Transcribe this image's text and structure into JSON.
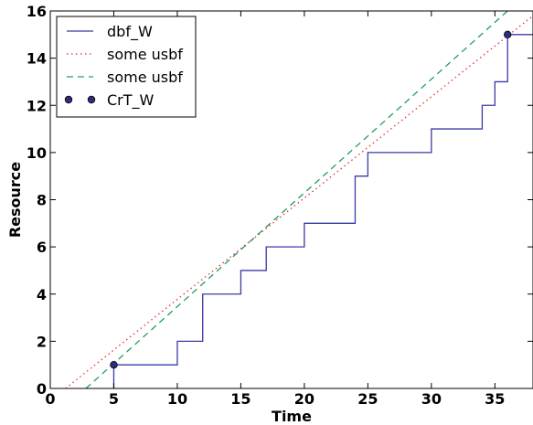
{
  "chart_data": {
    "type": "line",
    "title": "",
    "xlabel": "Time",
    "ylabel": "Resource",
    "xlim": [
      0,
      38
    ],
    "ylim": [
      0,
      16
    ],
    "xticks": [
      0,
      5,
      10,
      15,
      20,
      25,
      30,
      35
    ],
    "yticks": [
      0,
      2,
      4,
      6,
      8,
      10,
      12,
      14,
      16
    ],
    "grid": false,
    "legend_position": "top-left",
    "series": [
      {
        "name": "dbf_W",
        "style": "step",
        "color": "#3a3aa8",
        "x": [
          5,
          5,
          10,
          10,
          12,
          12,
          15,
          15,
          17,
          17,
          20,
          20,
          24,
          24,
          25,
          25,
          30,
          30,
          34,
          34,
          35,
          35,
          36,
          36,
          38
        ],
        "y": [
          0,
          1,
          1,
          2,
          2,
          4,
          4,
          5,
          5,
          6,
          6,
          7,
          7,
          9,
          9,
          10,
          10,
          11,
          11,
          12,
          12,
          13,
          13,
          15,
          15
        ]
      },
      {
        "name": "some usbf",
        "style": "dotted",
        "color": "#e03030",
        "x": [
          1.2,
          38
        ],
        "y": [
          0,
          15.8
        ]
      },
      {
        "name": "some usbf",
        "style": "dashed",
        "color": "#1f9e5e",
        "x": [
          2.8,
          36
        ],
        "y": [
          0,
          16
        ]
      },
      {
        "name": "CrT_W",
        "style": "markers",
        "color": "#2e2e7a",
        "x": [
          5,
          36
        ],
        "y": [
          1,
          15
        ]
      }
    ]
  }
}
